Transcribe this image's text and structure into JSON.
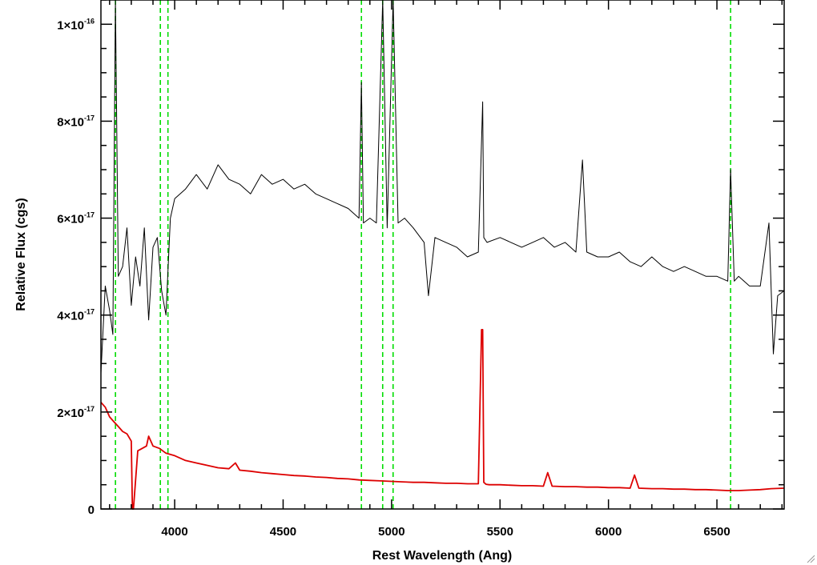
{
  "chart_data": {
    "type": "line",
    "title": "",
    "xlabel": "Rest Wavelength (Ang)",
    "ylabel": "Relative Flux (cgs)",
    "xlim": [
      3660,
      6810
    ],
    "ylim": [
      0,
      1.05e-16
    ],
    "x_ticks": [
      {
        "value": 4000,
        "label": "4000"
      },
      {
        "value": 4500,
        "label": "4500"
      },
      {
        "value": 5000,
        "label": "5000"
      },
      {
        "value": 5500,
        "label": "5500"
      },
      {
        "value": 6000,
        "label": "6000"
      },
      {
        "value": 6500,
        "label": "6500"
      }
    ],
    "y_ticks": [
      {
        "value": 0,
        "mantissa": "0",
        "exponent": ""
      },
      {
        "value": 2e-17,
        "mantissa": "2×10",
        "exponent": "-17"
      },
      {
        "value": 4e-17,
        "mantissa": "4×10",
        "exponent": "-17"
      },
      {
        "value": 6e-17,
        "mantissa": "6×10",
        "exponent": "-17"
      },
      {
        "value": 8e-17,
        "mantissa": "8×10",
        "exponent": "-17"
      },
      {
        "value": 1e-16,
        "mantissa": "1×10",
        "exponent": "-16"
      }
    ],
    "reference_lines": {
      "color": "#00dd00",
      "style": "dashed",
      "x": [
        3727,
        3934,
        3969,
        4861,
        4959,
        5007,
        6563
      ]
    },
    "series": [
      {
        "color": "#000000",
        "x": [
          3660,
          3680,
          3700,
          3715,
          3727,
          3740,
          3760,
          3780,
          3800,
          3820,
          3840,
          3860,
          3880,
          3900,
          3920,
          3940,
          3960,
          3980,
          4000,
          4050,
          4100,
          4150,
          4200,
          4250,
          4300,
          4350,
          4400,
          4450,
          4500,
          4550,
          4600,
          4650,
          4700,
          4750,
          4800,
          4850,
          4861,
          4870,
          4900,
          4930,
          4959,
          4980,
          5007,
          5030,
          5060,
          5100,
          5150,
          5170,
          5200,
          5250,
          5300,
          5350,
          5400,
          5420,
          5425,
          5440,
          5500,
          5550,
          5600,
          5650,
          5700,
          5750,
          5800,
          5850,
          5880,
          5900,
          5950,
          6000,
          6050,
          6100,
          6150,
          6200,
          6250,
          6300,
          6350,
          6400,
          6450,
          6500,
          6550,
          6563,
          6580,
          6600,
          6650,
          6700,
          6740,
          6760,
          6780,
          6810
        ],
        "y": [
          2.8e-17,
          4.6e-17,
          4.1e-17,
          3.6e-17,
          1.05e-16,
          4.8e-17,
          5e-17,
          5.8e-17,
          4.2e-17,
          5.2e-17,
          4.6e-17,
          5.8e-17,
          3.9e-17,
          5.4e-17,
          5.6e-17,
          4.5e-17,
          4e-17,
          6e-17,
          6.4e-17,
          6.6e-17,
          6.9e-17,
          6.6e-17,
          7.1e-17,
          6.8e-17,
          6.7e-17,
          6.5e-17,
          6.9e-17,
          6.7e-17,
          6.8e-17,
          6.6e-17,
          6.7e-17,
          6.5e-17,
          6.4e-17,
          6.3e-17,
          6.2e-17,
          6e-17,
          8.8e-17,
          5.9e-17,
          6e-17,
          5.9e-17,
          1.05e-16,
          5.8e-17,
          1.05e-16,
          5.9e-17,
          6e-17,
          5.8e-17,
          5.5e-17,
          4.4e-17,
          5.6e-17,
          5.5e-17,
          5.4e-17,
          5.2e-17,
          5.3e-17,
          8.4e-17,
          5.6e-17,
          5.5e-17,
          5.6e-17,
          5.5e-17,
          5.4e-17,
          5.5e-17,
          5.6e-17,
          5.4e-17,
          5.5e-17,
          5.3e-17,
          7.2e-17,
          5.3e-17,
          5.2e-17,
          5.2e-17,
          5.3e-17,
          5.1e-17,
          5e-17,
          5.2e-17,
          5e-17,
          4.9e-17,
          5e-17,
          4.9e-17,
          4.8e-17,
          4.8e-17,
          4.7e-17,
          7e-17,
          4.7e-17,
          4.8e-17,
          4.6e-17,
          4.6e-17,
          5.9e-17,
          3.2e-17,
          4.4e-17,
          4.5e-17
        ]
      },
      {
        "color": "#dd0000",
        "x": [
          3660,
          3680,
          3700,
          3720,
          3740,
          3760,
          3780,
          3800,
          3805,
          3810,
          3830,
          3850,
          3870,
          3880,
          3900,
          3930,
          3960,
          4000,
          4050,
          4100,
          4150,
          4200,
          4250,
          4280,
          4300,
          4350,
          4400,
          4450,
          4500,
          4550,
          4600,
          4650,
          4700,
          4750,
          4800,
          4850,
          4900,
          4950,
          5000,
          5050,
          5100,
          5150,
          5200,
          5250,
          5300,
          5350,
          5400,
          5415,
          5420,
          5425,
          5435,
          5450,
          5500,
          5550,
          5600,
          5650,
          5700,
          5720,
          5740,
          5800,
          5850,
          5900,
          5950,
          6000,
          6050,
          6100,
          6120,
          6140,
          6200,
          6250,
          6300,
          6350,
          6400,
          6450,
          6500,
          6550,
          6600,
          6650,
          6700,
          6750,
          6810
        ],
        "y": [
          2.2e-17,
          2.1e-17,
          1.9e-17,
          1.8e-17,
          1.7e-17,
          1.6e-17,
          1.55e-17,
          1.4e-17,
          0,
          0,
          1.2e-17,
          1.25e-17,
          1.3e-17,
          1.5e-17,
          1.3e-17,
          1.25e-17,
          1.15e-17,
          1.1e-17,
          1e-17,
          9.5e-18,
          9e-18,
          8.5e-18,
          8.3e-18,
          9.5e-18,
          8e-18,
          7.8e-18,
          7.5e-18,
          7.3e-18,
          7.1e-18,
          6.9e-18,
          6.8e-18,
          6.6e-18,
          6.5e-18,
          6.3e-18,
          6.2e-18,
          6e-18,
          5.9e-18,
          5.8e-18,
          5.7e-18,
          5.6e-18,
          5.5e-18,
          5.5e-18,
          5.4e-18,
          5.3e-18,
          5.3e-18,
          5.2e-18,
          5.2e-18,
          3.7e-17,
          3.7e-17,
          5.5e-18,
          5.1e-18,
          5e-18,
          5e-18,
          4.9e-18,
          4.8e-18,
          4.8e-18,
          4.7e-18,
          7.5e-18,
          4.7e-18,
          4.6e-18,
          4.6e-18,
          4.5e-18,
          4.5e-18,
          4.4e-18,
          4.4e-18,
          4.3e-18,
          7e-18,
          4.3e-18,
          4.2e-18,
          4.2e-18,
          4.1e-18,
          4.1e-18,
          4e-18,
          4e-18,
          3.9e-18,
          3.8e-18,
          3.8e-18,
          3.9e-18,
          4e-18,
          4.2e-18,
          4.3e-18
        ]
      }
    ]
  }
}
